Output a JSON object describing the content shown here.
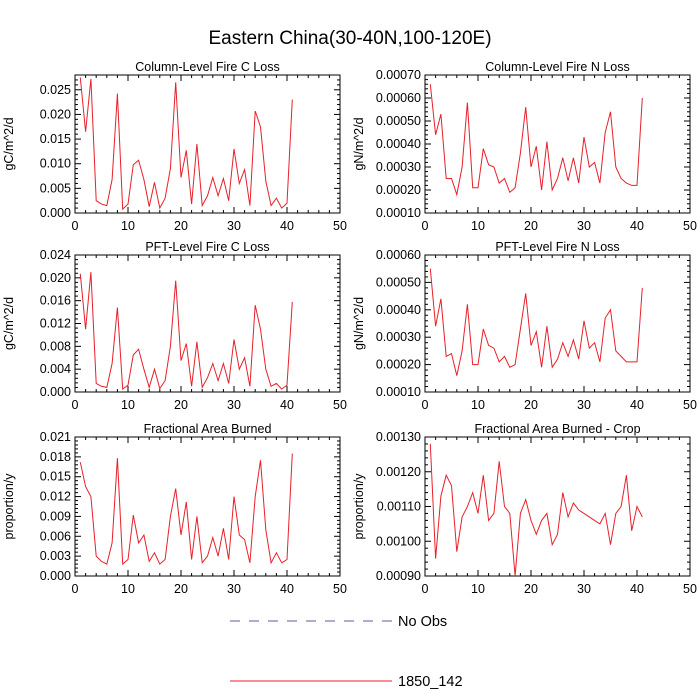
{
  "title": "Eastern China(30-40N,100-120E)",
  "legend": [
    {
      "label": "No Obs",
      "color": "#5a5aa8",
      "dash": true
    },
    {
      "label": "1850_142",
      "color": "#e8202a",
      "dash": false
    }
  ],
  "series_color": "#e8202a",
  "chart_data": [
    {
      "type": "line",
      "title": "Column-Level Fire C Loss",
      "ylabel": "gC/m^2/d",
      "xlim": [
        0,
        50
      ],
      "ylim": [
        0,
        0.028
      ],
      "xticks": [
        "0",
        "10",
        "20",
        "30",
        "40",
        "50"
      ],
      "yticks": [
        "0.000",
        "0.005",
        "0.010",
        "0.015",
        "0.020",
        "0.025"
      ],
      "ytick_values": [
        0,
        0.005,
        0.01,
        0.015,
        0.02,
        0.025
      ],
      "x": [
        1,
        2,
        3,
        4,
        5,
        6,
        7,
        8,
        9,
        10,
        11,
        12,
        13,
        14,
        15,
        16,
        17,
        18,
        19,
        20,
        21,
        22,
        23,
        24,
        25,
        26,
        27,
        28,
        29,
        30,
        31,
        32,
        33,
        34,
        35,
        36,
        37,
        38,
        39,
        40,
        41
      ],
      "y": [
        0.0275,
        0.0165,
        0.0272,
        0.0025,
        0.0018,
        0.0015,
        0.0068,
        0.0242,
        0.0008,
        0.0018,
        0.0098,
        0.0107,
        0.0068,
        0.0013,
        0.0062,
        0.001,
        0.003,
        0.009,
        0.0265,
        0.0072,
        0.0127,
        0.0018,
        0.014,
        0.0015,
        0.0035,
        0.0072,
        0.0035,
        0.007,
        0.0025,
        0.013,
        0.006,
        0.0088,
        0.0015,
        0.0207,
        0.0175,
        0.0065,
        0.0015,
        0.003,
        0.001,
        0.002,
        0.023
      ]
    },
    {
      "type": "line",
      "title": "Column-Level Fire N Loss",
      "ylabel": "gN/m^2/d",
      "xlim": [
        0,
        50
      ],
      "ylim": [
        0.0001,
        0.0007
      ],
      "xticks": [
        "0",
        "10",
        "20",
        "30",
        "40",
        "50"
      ],
      "yticks": [
        "0.00010",
        "0.00020",
        "0.00030",
        "0.00040",
        "0.00050",
        "0.00060",
        "0.00070"
      ],
      "ytick_values": [
        0.0001,
        0.0002,
        0.0003,
        0.0004,
        0.0005,
        0.0006,
        0.0007
      ],
      "x": [
        1,
        2,
        3,
        4,
        5,
        6,
        7,
        8,
        9,
        10,
        11,
        12,
        13,
        14,
        15,
        16,
        17,
        18,
        19,
        20,
        21,
        22,
        23,
        24,
        25,
        26,
        27,
        28,
        29,
        30,
        31,
        32,
        33,
        34,
        35,
        36,
        37,
        38,
        39,
        40,
        41
      ],
      "y": [
        0.00066,
        0.00044,
        0.00053,
        0.00025,
        0.00025,
        0.00018,
        0.0003,
        0.00058,
        0.00021,
        0.00021,
        0.00038,
        0.00031,
        0.0003,
        0.00023,
        0.00025,
        0.00019,
        0.00021,
        0.00036,
        0.00056,
        0.0003,
        0.00039,
        0.0002,
        0.00041,
        0.0002,
        0.00025,
        0.00034,
        0.00024,
        0.00034,
        0.00023,
        0.00043,
        0.0003,
        0.00032,
        0.00023,
        0.00045,
        0.00054,
        0.0003,
        0.00025,
        0.00023,
        0.00022,
        0.00022,
        0.0006
      ]
    },
    {
      "type": "line",
      "title": "PFT-Level Fire C Loss",
      "ylabel": "gC/m^2/d",
      "xlim": [
        0,
        50
      ],
      "ylim": [
        0,
        0.024
      ],
      "xticks": [
        "0",
        "10",
        "20",
        "30",
        "40",
        "50"
      ],
      "yticks": [
        "0.000",
        "0.004",
        "0.008",
        "0.012",
        "0.016",
        "0.020",
        "0.024"
      ],
      "ytick_values": [
        0,
        0.004,
        0.008,
        0.012,
        0.016,
        0.02,
        0.024
      ],
      "x": [
        1,
        2,
        3,
        4,
        5,
        6,
        7,
        8,
        9,
        10,
        11,
        12,
        13,
        14,
        15,
        16,
        17,
        18,
        19,
        20,
        21,
        22,
        23,
        24,
        25,
        26,
        27,
        28,
        29,
        30,
        31,
        32,
        33,
        34,
        35,
        36,
        37,
        38,
        39,
        40,
        41
      ],
      "y": [
        0.0207,
        0.011,
        0.021,
        0.0015,
        0.001,
        0.0008,
        0.005,
        0.0148,
        0.0005,
        0.0012,
        0.0065,
        0.0075,
        0.004,
        0.0008,
        0.004,
        0.0006,
        0.002,
        0.008,
        0.0195,
        0.0055,
        0.0085,
        0.001,
        0.0088,
        0.0008,
        0.0025,
        0.005,
        0.002,
        0.005,
        0.0015,
        0.0092,
        0.004,
        0.006,
        0.001,
        0.0152,
        0.011,
        0.004,
        0.001,
        0.0015,
        0.0005,
        0.0012,
        0.0158
      ]
    },
    {
      "type": "line",
      "title": "PFT-Level Fire N Loss",
      "ylabel": "gN/m^2/d",
      "xlim": [
        0,
        50
      ],
      "ylim": [
        0.0001,
        0.0006
      ],
      "xticks": [
        "0",
        "10",
        "20",
        "30",
        "40",
        "50"
      ],
      "yticks": [
        "0.00010",
        "0.00020",
        "0.00030",
        "0.00040",
        "0.00050",
        "0.00060"
      ],
      "ytick_values": [
        0.0001,
        0.0002,
        0.0003,
        0.0004,
        0.0005,
        0.0006
      ],
      "x": [
        1,
        2,
        3,
        4,
        5,
        6,
        7,
        8,
        9,
        10,
        11,
        12,
        13,
        14,
        15,
        16,
        17,
        18,
        19,
        20,
        21,
        22,
        23,
        24,
        25,
        26,
        27,
        28,
        29,
        30,
        31,
        32,
        33,
        34,
        35,
        36,
        37,
        38,
        39,
        40,
        41
      ],
      "y": [
        0.00055,
        0.00034,
        0.00044,
        0.00023,
        0.00024,
        0.00016,
        0.00025,
        0.00042,
        0.0002,
        0.0002,
        0.00033,
        0.00027,
        0.00026,
        0.00021,
        0.00023,
        0.00019,
        0.0002,
        0.00033,
        0.00046,
        0.00027,
        0.00032,
        0.00019,
        0.00034,
        0.00019,
        0.00022,
        0.00028,
        0.00023,
        0.00029,
        0.00022,
        0.00036,
        0.00026,
        0.00028,
        0.00021,
        0.00037,
        0.0004,
        0.00025,
        0.00023,
        0.00021,
        0.00021,
        0.00021,
        0.00048
      ]
    },
    {
      "type": "line",
      "title": "Fractional Area Burned",
      "ylabel": "proportion/y",
      "xlim": [
        0,
        50
      ],
      "ylim": [
        0,
        0.021
      ],
      "xticks": [
        "0",
        "10",
        "20",
        "30",
        "40",
        "50"
      ],
      "yticks": [
        "0.000",
        "0.003",
        "0.006",
        "0.009",
        "0.012",
        "0.015",
        "0.018",
        "0.021"
      ],
      "ytick_values": [
        0,
        0.003,
        0.006,
        0.009,
        0.012,
        0.015,
        0.018,
        0.021
      ],
      "x": [
        1,
        2,
        3,
        4,
        5,
        6,
        7,
        8,
        9,
        10,
        11,
        12,
        13,
        14,
        15,
        16,
        17,
        18,
        19,
        20,
        21,
        22,
        23,
        24,
        25,
        26,
        27,
        28,
        29,
        30,
        31,
        32,
        33,
        34,
        35,
        36,
        37,
        38,
        39,
        40,
        41
      ],
      "y": [
        0.0172,
        0.0135,
        0.012,
        0.003,
        0.0022,
        0.0018,
        0.005,
        0.0178,
        0.0018,
        0.0025,
        0.0092,
        0.005,
        0.0062,
        0.0022,
        0.0035,
        0.0018,
        0.0025,
        0.009,
        0.0132,
        0.0062,
        0.0112,
        0.0025,
        0.009,
        0.002,
        0.003,
        0.0058,
        0.003,
        0.0072,
        0.0025,
        0.012,
        0.0062,
        0.0055,
        0.002,
        0.012,
        0.0175,
        0.007,
        0.002,
        0.0035,
        0.002,
        0.0025,
        0.0185
      ]
    },
    {
      "type": "line",
      "title": "Fractional Area Burned - Crop",
      "ylabel": "proportion/y",
      "xlim": [
        0,
        50
      ],
      "ylim": [
        0.0009,
        0.0013
      ],
      "xticks": [
        "0",
        "10",
        "20",
        "30",
        "40",
        "50"
      ],
      "yticks": [
        "0.00090",
        "0.00100",
        "0.00110",
        "0.00120",
        "0.00130"
      ],
      "ytick_values": [
        0.0009,
        0.001,
        0.0011,
        0.0012,
        0.0013
      ],
      "x": [
        1,
        2,
        3,
        4,
        5,
        6,
        7,
        8,
        9,
        10,
        11,
        12,
        13,
        14,
        15,
        16,
        17,
        18,
        19,
        20,
        21,
        22,
        23,
        24,
        25,
        26,
        27,
        28,
        29,
        30,
        31,
        32,
        33,
        34,
        35,
        36,
        37,
        38,
        39,
        40,
        41
      ],
      "y": [
        0.00128,
        0.00095,
        0.00113,
        0.00119,
        0.00116,
        0.00097,
        0.00107,
        0.0011,
        0.00114,
        0.00108,
        0.00119,
        0.00106,
        0.00108,
        0.00123,
        0.0011,
        0.00108,
        0.0009,
        0.00108,
        0.00112,
        0.00106,
        0.00102,
        0.00106,
        0.00108,
        0.00099,
        0.00102,
        0.00114,
        0.00107,
        0.00111,
        0.00109,
        0.00108,
        0.00107,
        0.00106,
        0.00105,
        0.00108,
        0.00099,
        0.00108,
        0.0011,
        0.00119,
        0.00103,
        0.0011,
        0.00107
      ]
    }
  ]
}
